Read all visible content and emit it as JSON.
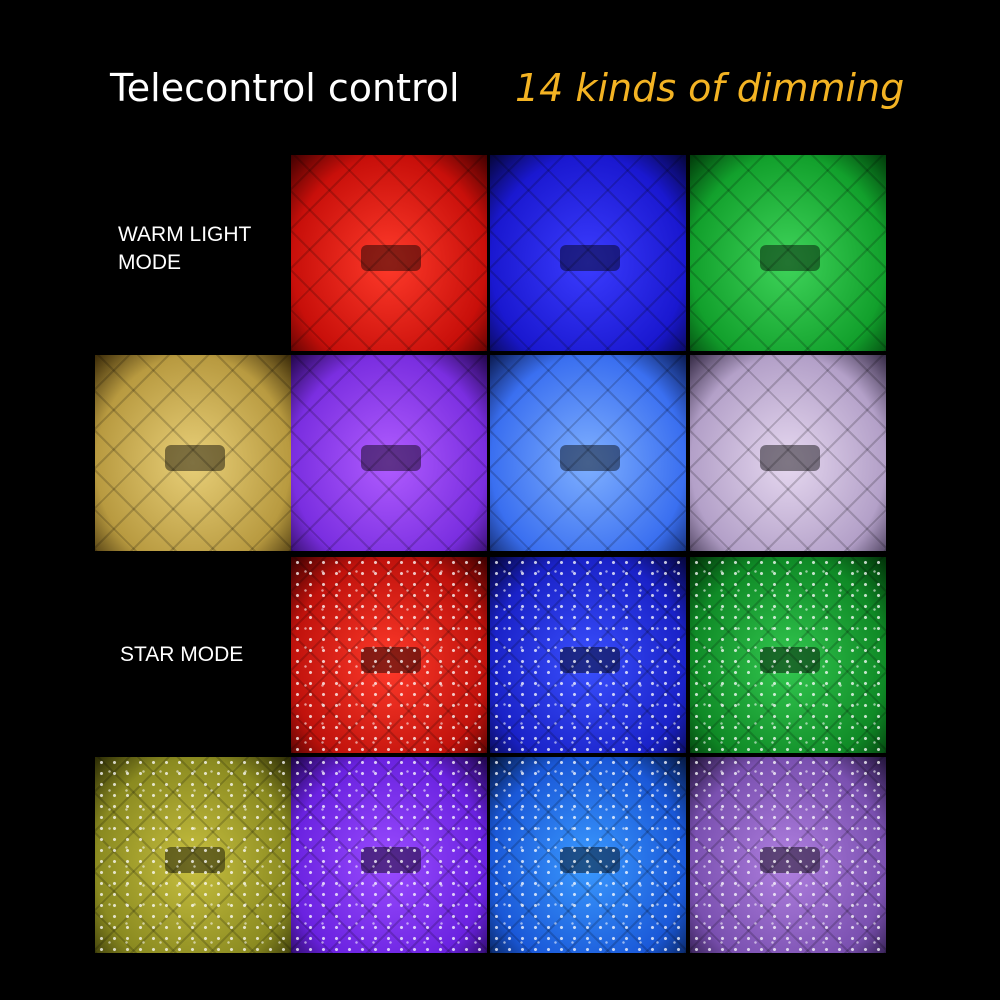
{
  "header": {
    "left": "Telecontrol control",
    "right": "14 kinds of dimming"
  },
  "labels": {
    "warm": [
      "WARM LIGHT",
      "MODE"
    ],
    "star": "STAR MODE"
  }
}
